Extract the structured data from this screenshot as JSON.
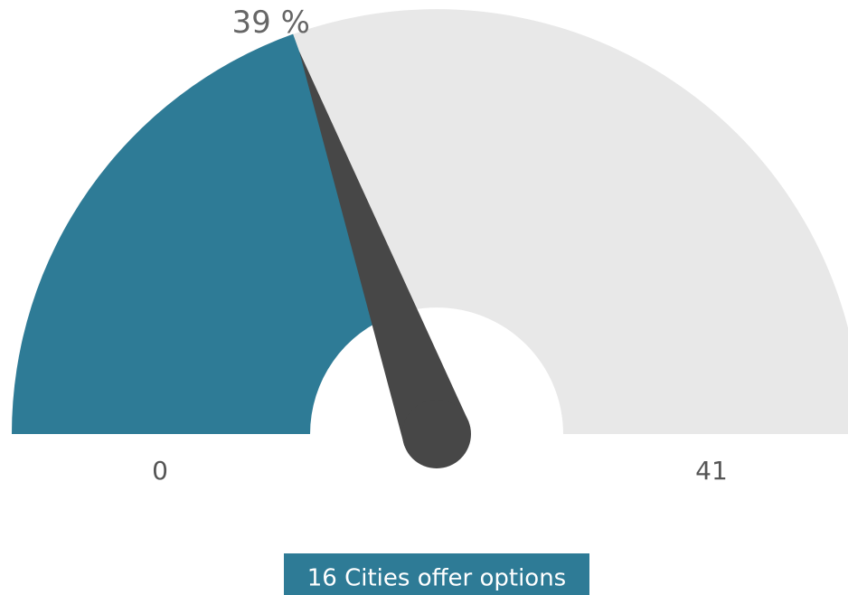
{
  "chart_data": {
    "type": "gauge",
    "min": 0,
    "max": 41,
    "value": 16,
    "percent": {
      "value": 39,
      "label": "39 %"
    },
    "caption": "16 Cities offer options",
    "fill_color": "#2e7b96",
    "track_color": "#e8e8e8",
    "needle_color": "#474747"
  }
}
